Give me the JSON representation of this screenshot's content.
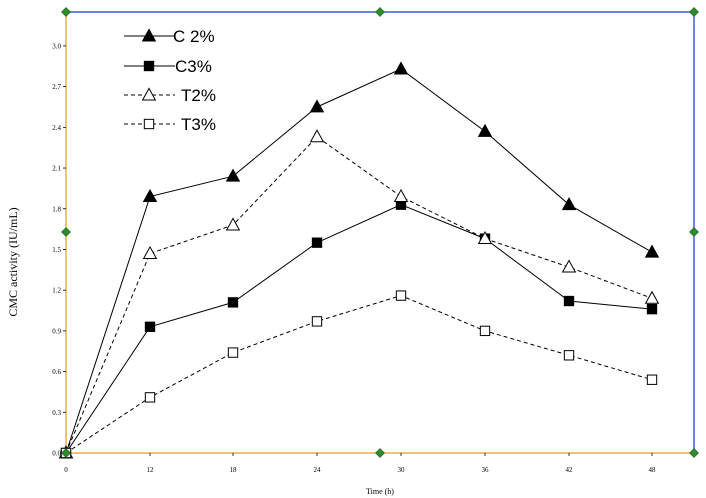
{
  "chart_data": {
    "type": "line",
    "title": "",
    "xlabel": "Time (h)",
    "ylabel": "CMC activity (IU/mL)",
    "x": [
      0,
      12,
      18,
      24,
      30,
      36,
      42,
      48
    ],
    "x_tick_labels": [
      "0",
      "12",
      "18",
      "24",
      "30",
      "36",
      "42",
      "48"
    ],
    "y_tick_labels": [
      "0.0",
      "0.3",
      "0.6",
      "0.9",
      "1.2",
      "1.5",
      "1.8",
      "2.1",
      "2.4",
      "2.7",
      "3.0"
    ],
    "ylim": [
      0,
      3.25
    ],
    "grid": false,
    "legend_position": "top-left",
    "series": [
      {
        "name": "C 2%",
        "values": [
          0,
          1.89,
          2.04,
          2.55,
          2.83,
          2.37,
          1.83,
          1.48
        ],
        "marker": "triangle-filled",
        "line": "solid"
      },
      {
        "name": "C3%",
        "values": [
          0,
          0.93,
          1.11,
          1.55,
          1.83,
          1.58,
          1.12,
          1.06
        ],
        "marker": "square-filled",
        "line": "solid"
      },
      {
        "name": "T2%",
        "values": [
          0,
          1.47,
          1.68,
          2.33,
          1.89,
          1.58,
          1.37,
          1.14
        ],
        "marker": "triangle-open",
        "line": "dashed"
      },
      {
        "name": "T3%",
        "values": [
          0,
          0.41,
          0.74,
          0.97,
          1.16,
          0.9,
          0.72,
          0.54
        ],
        "marker": "square-open",
        "line": "dashed"
      }
    ],
    "colors": {
      "axis": "#e3a008",
      "frame": "#3b5bd6",
      "handle": "#2e8b2e",
      "series": "#000000"
    }
  }
}
